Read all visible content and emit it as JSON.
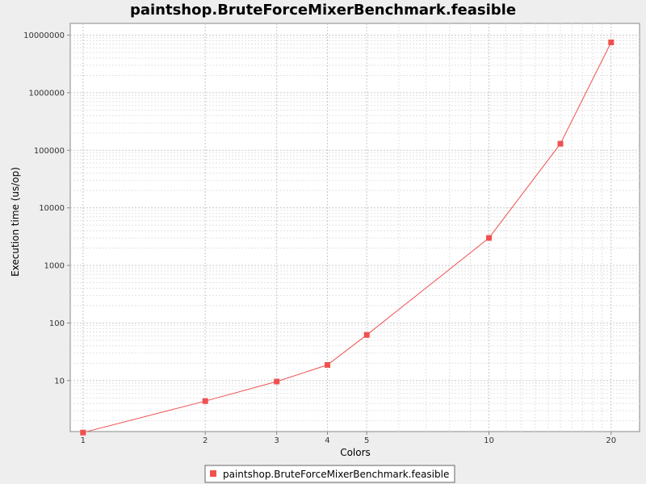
{
  "chart_data": {
    "type": "line",
    "title": "paintshop.BruteForceMixerBenchmark.feasible",
    "xlabel": "Colors",
    "ylabel": "Execution time (us/op)",
    "x_scale": "log",
    "y_scale": "log",
    "xlim": [
      0.93,
      23.5
    ],
    "ylim": [
      1.3,
      16000000
    ],
    "x_ticks": [
      1,
      2,
      3,
      4,
      5,
      10,
      20
    ],
    "x_tick_labels": [
      "1",
      "2",
      "3",
      "4",
      "5",
      "10",
      "20"
    ],
    "y_ticks": [
      10,
      100,
      1000,
      10000,
      100000,
      1000000,
      10000000
    ],
    "y_tick_labels": [
      "10",
      "100",
      "1000",
      "10000",
      "100000",
      "1000000",
      "10000000"
    ],
    "grid": true,
    "legend_position": "bottom-center",
    "series": [
      {
        "name": "paintshop.BruteForceMixerBenchmark.feasible",
        "color": "#f05050",
        "marker": "square",
        "x": [
          1,
          2,
          3,
          4,
          5,
          10,
          15,
          20
        ],
        "y": [
          1.25,
          4.4,
          9.6,
          18.7,
          62,
          3000,
          130000,
          7500000
        ]
      }
    ]
  }
}
